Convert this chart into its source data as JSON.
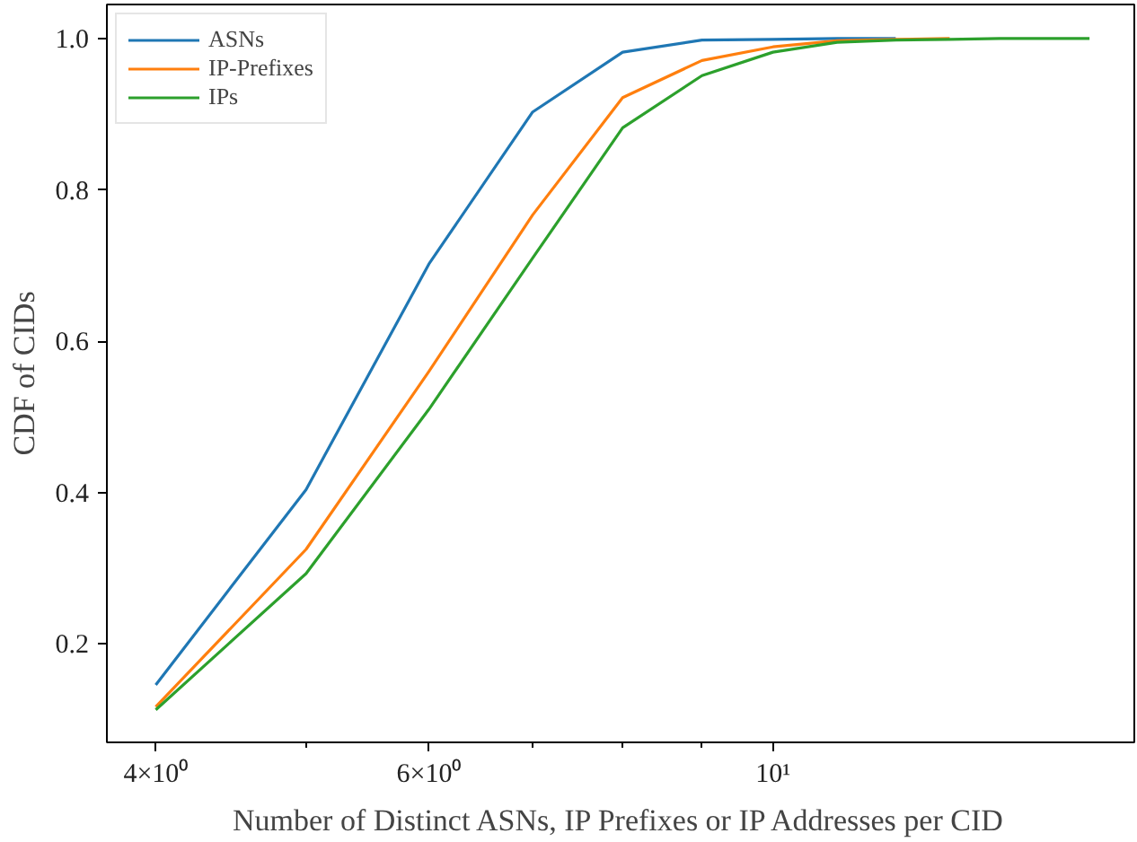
{
  "chart_data": {
    "type": "line",
    "xlabel": "Number of Distinct ASNs, IP Prefixes or IP Addresses per CID",
    "ylabel": "CDF of CIDs",
    "log": "x",
    "xlim": [
      3.72,
      17.1
    ],
    "ylim": [
      0.07,
      1.045
    ],
    "xticks": [
      {
        "value": 4,
        "label": "4×10⁰"
      },
      {
        "value": 5,
        "label": null
      },
      {
        "value": 6,
        "label": "6×10⁰"
      },
      {
        "value": 7,
        "label": null
      },
      {
        "value": 8,
        "label": null
      },
      {
        "value": 9,
        "label": null
      },
      {
        "value": 10,
        "label": "10¹"
      }
    ],
    "yticks": [
      0.2,
      0.4,
      0.6,
      0.8,
      {
        "value": 1,
        "label": "1.0"
      }
    ],
    "grid": false,
    "legend": "top left",
    "series": [
      {
        "name": "ASNs",
        "color": "#1f77b4",
        "x": [
          4,
          5,
          6,
          7,
          8,
          9,
          10,
          11,
          12
        ],
        "values": [
          0.146,
          0.404,
          0.702,
          0.903,
          0.982,
          0.998,
          0.999,
          1.0,
          1.0
        ]
      },
      {
        "name": "IP-Prefixes",
        "color": "#ff7f0e",
        "x": [
          4,
          5,
          6,
          7,
          8,
          9,
          10,
          11,
          12,
          13
        ],
        "values": [
          0.117,
          0.325,
          0.56,
          0.767,
          0.922,
          0.971,
          0.989,
          0.997,
          0.999,
          1.0
        ]
      },
      {
        "name": "IPs",
        "color": "#2ca02c",
        "x": [
          4,
          5,
          6,
          7,
          8,
          9,
          10,
          11,
          12,
          13,
          14,
          15,
          16
        ],
        "values": [
          0.113,
          0.293,
          0.51,
          0.71,
          0.882,
          0.951,
          0.982,
          0.995,
          0.998,
          0.999,
          1.0,
          1.0,
          1.0
        ]
      }
    ]
  }
}
